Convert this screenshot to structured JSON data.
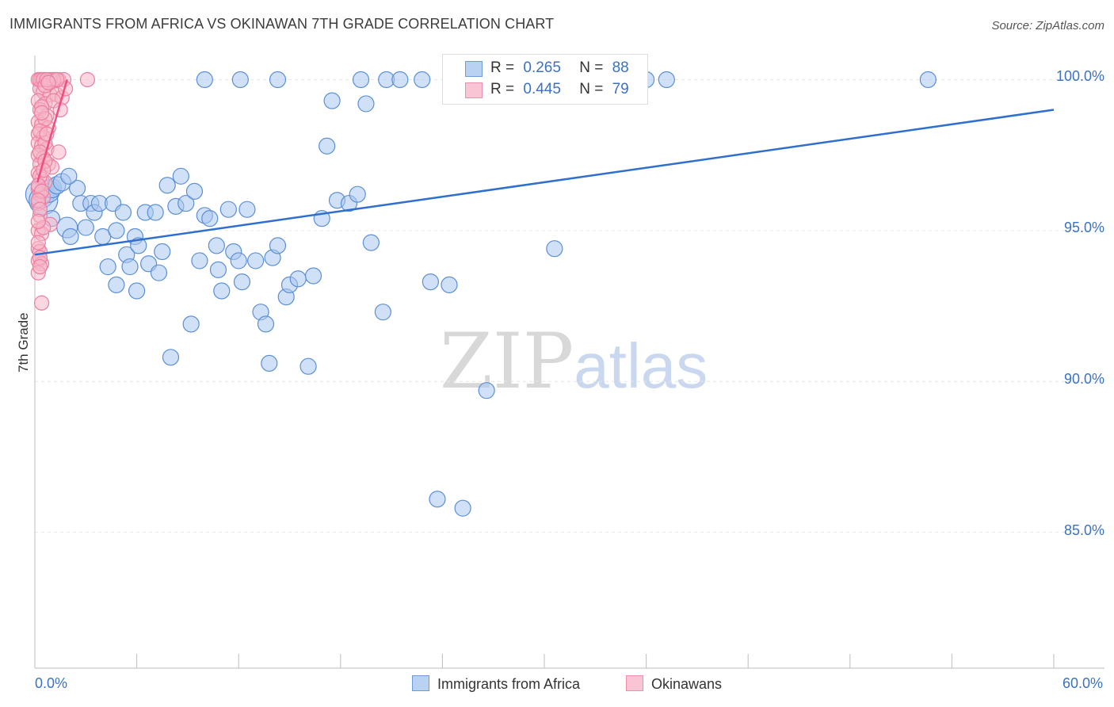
{
  "header": {
    "title": "IMMIGRANTS FROM AFRICA VS OKINAWAN 7TH GRADE CORRELATION CHART",
    "source": "Source: ZipAtlas.com"
  },
  "legend": {
    "rows": [
      {
        "r_label": "R =",
        "r_value": "0.265",
        "n_label": "N =",
        "n_value": "88"
      },
      {
        "r_label": "R =",
        "r_value": "0.445",
        "n_label": "N =",
        "n_value": "79"
      }
    ],
    "series_names": [
      "Immigrants from Africa",
      "Okinawans"
    ]
  },
  "watermark": {
    "zip": "ZIP",
    "atlas": "atlas"
  },
  "colors": {
    "blue_fill": "#a9c7ee",
    "blue_stroke": "#5b8fd6",
    "blue_line": "#2f6fcf",
    "pink_fill": "#f6b6c8",
    "pink_stroke": "#ee7da0",
    "pink_line": "#ee4f80",
    "grid": "#e6e6e6",
    "tick_text": "#3a72c4"
  },
  "chart_data": {
    "type": "scatter",
    "title": "IMMIGRANTS FROM AFRICA VS OKINAWAN 7TH GRADE CORRELATION CHART",
    "xlabel": "",
    "ylabel": "7th Grade",
    "x_tick_labels": [
      "0.0%",
      "60.0%"
    ],
    "y_tick_labels": [
      "100.0%",
      "95.0%",
      "90.0%",
      "85.0%"
    ],
    "y_ticks": [
      100,
      95,
      90,
      85
    ],
    "xlim": [
      0,
      60
    ],
    "ylim": [
      80.5,
      100.8
    ],
    "grid": true,
    "legend_position": "top-center",
    "series": [
      {
        "name": "Immigrants from Africa",
        "color": "blue",
        "r": 0.265,
        "n": 88,
        "trend": {
          "x": [
            0,
            60
          ],
          "y": [
            94.2,
            99.0
          ]
        },
        "points": [
          {
            "x": 0.3,
            "y": 96.2,
            "s": 18
          },
          {
            "x": 0.5,
            "y": 96.0,
            "s": 18
          },
          {
            "x": 0.8,
            "y": 96.3,
            "s": 14
          },
          {
            "x": 1.0,
            "y": 96.4,
            "s": 12
          },
          {
            "x": 1.3,
            "y": 96.5,
            "s": 11
          },
          {
            "x": 1.6,
            "y": 96.6,
            "s": 11
          },
          {
            "x": 1.9,
            "y": 95.1,
            "s": 13
          },
          {
            "x": 2.1,
            "y": 94.8,
            "s": 10
          },
          {
            "x": 2.5,
            "y": 96.4,
            "s": 10
          },
          {
            "x": 2.7,
            "y": 95.9,
            "s": 10
          },
          {
            "x": 3.0,
            "y": 95.1,
            "s": 10
          },
          {
            "x": 3.3,
            "y": 95.9,
            "s": 10
          },
          {
            "x": 3.5,
            "y": 95.6,
            "s": 10
          },
          {
            "x": 3.8,
            "y": 95.9,
            "s": 10
          },
          {
            "x": 4.0,
            "y": 94.8,
            "s": 10
          },
          {
            "x": 4.3,
            "y": 93.8,
            "s": 10
          },
          {
            "x": 4.6,
            "y": 95.9,
            "s": 10
          },
          {
            "x": 4.8,
            "y": 93.2,
            "s": 10
          },
          {
            "x": 5.2,
            "y": 95.6,
            "s": 10
          },
          {
            "x": 5.4,
            "y": 94.2,
            "s": 10
          },
          {
            "x": 5.6,
            "y": 93.8,
            "s": 10
          },
          {
            "x": 5.9,
            "y": 94.8,
            "s": 10
          },
          {
            "x": 6.1,
            "y": 94.5,
            "s": 10
          },
          {
            "x": 6.5,
            "y": 95.6,
            "s": 10
          },
          {
            "x": 6.7,
            "y": 93.9,
            "s": 10
          },
          {
            "x": 7.1,
            "y": 95.6,
            "s": 10
          },
          {
            "x": 7.3,
            "y": 93.6,
            "s": 10
          },
          {
            "x": 7.5,
            "y": 94.3,
            "s": 10
          },
          {
            "x": 7.8,
            "y": 96.5,
            "s": 10
          },
          {
            "x": 8.0,
            "y": 90.8,
            "s": 10
          },
          {
            "x": 8.3,
            "y": 95.8,
            "s": 10
          },
          {
            "x": 8.6,
            "y": 96.8,
            "s": 10
          },
          {
            "x": 8.9,
            "y": 95.9,
            "s": 10
          },
          {
            "x": 9.2,
            "y": 91.9,
            "s": 10
          },
          {
            "x": 9.4,
            "y": 96.3,
            "s": 10
          },
          {
            "x": 9.7,
            "y": 94.0,
            "s": 10
          },
          {
            "x": 10.0,
            "y": 95.5,
            "s": 10
          },
          {
            "x": 10.3,
            "y": 95.4,
            "s": 10
          },
          {
            "x": 10.7,
            "y": 94.5,
            "s": 10
          },
          {
            "x": 10.8,
            "y": 93.7,
            "s": 10
          },
          {
            "x": 11.0,
            "y": 93.0,
            "s": 10
          },
          {
            "x": 11.4,
            "y": 95.7,
            "s": 10
          },
          {
            "x": 11.7,
            "y": 94.3,
            "s": 10
          },
          {
            "x": 12.0,
            "y": 94.0,
            "s": 10
          },
          {
            "x": 12.2,
            "y": 93.3,
            "s": 10
          },
          {
            "x": 12.5,
            "y": 95.7,
            "s": 10
          },
          {
            "x": 13.0,
            "y": 94.0,
            "s": 10
          },
          {
            "x": 13.3,
            "y": 92.3,
            "s": 10
          },
          {
            "x": 13.6,
            "y": 91.9,
            "s": 10
          },
          {
            "x": 13.8,
            "y": 90.6,
            "s": 10
          },
          {
            "x": 14.0,
            "y": 94.1,
            "s": 10
          },
          {
            "x": 14.3,
            "y": 94.5,
            "s": 10
          },
          {
            "x": 14.8,
            "y": 92.8,
            "s": 10
          },
          {
            "x": 15.0,
            "y": 93.2,
            "s": 10
          },
          {
            "x": 15.5,
            "y": 93.4,
            "s": 10
          },
          {
            "x": 16.1,
            "y": 90.5,
            "s": 10
          },
          {
            "x": 16.4,
            "y": 93.5,
            "s": 10
          },
          {
            "x": 16.9,
            "y": 95.4,
            "s": 10
          },
          {
            "x": 17.2,
            "y": 97.8,
            "s": 10
          },
          {
            "x": 17.5,
            "y": 99.3,
            "s": 10
          },
          {
            "x": 17.8,
            "y": 96.0,
            "s": 10
          },
          {
            "x": 18.5,
            "y": 95.9,
            "s": 10
          },
          {
            "x": 19.0,
            "y": 96.2,
            "s": 10
          },
          {
            "x": 19.2,
            "y": 100.0,
            "s": 10
          },
          {
            "x": 19.5,
            "y": 99.2,
            "s": 10
          },
          {
            "x": 19.8,
            "y": 94.6,
            "s": 10
          },
          {
            "x": 20.5,
            "y": 92.3,
            "s": 10
          },
          {
            "x": 20.7,
            "y": 100.0,
            "s": 10
          },
          {
            "x": 22.8,
            "y": 100.0,
            "s": 10
          },
          {
            "x": 23.3,
            "y": 93.3,
            "s": 10
          },
          {
            "x": 23.7,
            "y": 86.1,
            "s": 10
          },
          {
            "x": 24.4,
            "y": 93.2,
            "s": 10
          },
          {
            "x": 25.2,
            "y": 85.8,
            "s": 10
          },
          {
            "x": 26.6,
            "y": 89.7,
            "s": 10
          },
          {
            "x": 30.6,
            "y": 94.4,
            "s": 10
          },
          {
            "x": 34.0,
            "y": 100.0,
            "s": 10
          },
          {
            "x": 37.2,
            "y": 100.0,
            "s": 10
          },
          {
            "x": 52.6,
            "y": 100.0,
            "s": 10
          },
          {
            "x": 14.3,
            "y": 100.0,
            "s": 10
          },
          {
            "x": 26.0,
            "y": 100.0,
            "s": 10
          },
          {
            "x": 36.0,
            "y": 100.0,
            "s": 10
          },
          {
            "x": 21.5,
            "y": 100.0,
            "s": 10
          },
          {
            "x": 10.0,
            "y": 100.0,
            "s": 10
          },
          {
            "x": 12.1,
            "y": 100.0,
            "s": 10
          },
          {
            "x": 1.0,
            "y": 95.4,
            "s": 10
          },
          {
            "x": 2.0,
            "y": 96.8,
            "s": 10
          },
          {
            "x": 4.8,
            "y": 95.0,
            "s": 10
          },
          {
            "x": 6.0,
            "y": 93.0,
            "s": 10
          }
        ]
      },
      {
        "name": "Okinawans",
        "color": "pink",
        "r": 0.445,
        "n": 79,
        "trend": {
          "x": [
            0.15,
            1.9
          ],
          "y": [
            96.6,
            100.0
          ]
        },
        "points": [
          {
            "x": 0.2,
            "y": 100.0
          },
          {
            "x": 0.4,
            "y": 100.0
          },
          {
            "x": 0.6,
            "y": 100.0
          },
          {
            "x": 0.8,
            "y": 100.0
          },
          {
            "x": 1.0,
            "y": 100.0
          },
          {
            "x": 1.2,
            "y": 100.0
          },
          {
            "x": 1.4,
            "y": 100.0
          },
          {
            "x": 1.7,
            "y": 100.0
          },
          {
            "x": 3.1,
            "y": 100.0
          },
          {
            "x": 0.3,
            "y": 99.7
          },
          {
            "x": 0.5,
            "y": 99.6
          },
          {
            "x": 0.9,
            "y": 99.5
          },
          {
            "x": 1.3,
            "y": 99.5
          },
          {
            "x": 1.6,
            "y": 99.4
          },
          {
            "x": 0.2,
            "y": 99.3
          },
          {
            "x": 0.6,
            "y": 99.2
          },
          {
            "x": 1.1,
            "y": 99.3
          },
          {
            "x": 0.3,
            "y": 99.0
          },
          {
            "x": 0.7,
            "y": 98.8
          },
          {
            "x": 1.5,
            "y": 99.0
          },
          {
            "x": 0.2,
            "y": 98.6
          },
          {
            "x": 0.4,
            "y": 98.5
          },
          {
            "x": 0.8,
            "y": 98.4
          },
          {
            "x": 0.2,
            "y": 98.2
          },
          {
            "x": 0.5,
            "y": 98.1
          },
          {
            "x": 0.2,
            "y": 97.9
          },
          {
            "x": 0.4,
            "y": 97.8
          },
          {
            "x": 0.7,
            "y": 97.7
          },
          {
            "x": 0.2,
            "y": 97.5
          },
          {
            "x": 0.5,
            "y": 97.4
          },
          {
            "x": 1.4,
            "y": 97.6
          },
          {
            "x": 0.3,
            "y": 97.2
          },
          {
            "x": 0.8,
            "y": 97.2
          },
          {
            "x": 1.0,
            "y": 97.1
          },
          {
            "x": 0.2,
            "y": 96.9
          },
          {
            "x": 0.4,
            "y": 96.7
          },
          {
            "x": 0.6,
            "y": 96.6
          },
          {
            "x": 0.2,
            "y": 96.4
          },
          {
            "x": 0.3,
            "y": 96.2
          },
          {
            "x": 0.5,
            "y": 96.1
          },
          {
            "x": 0.2,
            "y": 95.9
          },
          {
            "x": 0.3,
            "y": 95.5
          },
          {
            "x": 0.9,
            "y": 95.2
          },
          {
            "x": 0.2,
            "y": 95.0
          },
          {
            "x": 0.4,
            "y": 94.9
          },
          {
            "x": 0.2,
            "y": 94.4
          },
          {
            "x": 0.3,
            "y": 94.3
          },
          {
            "x": 0.2,
            "y": 94.0
          },
          {
            "x": 0.4,
            "y": 93.9
          },
          {
            "x": 0.2,
            "y": 93.6
          },
          {
            "x": 0.4,
            "y": 92.6
          },
          {
            "x": 0.3,
            "y": 100.0
          },
          {
            "x": 0.5,
            "y": 100.0
          },
          {
            "x": 0.9,
            "y": 100.0
          },
          {
            "x": 1.1,
            "y": 100.0
          },
          {
            "x": 0.6,
            "y": 99.8
          },
          {
            "x": 1.8,
            "y": 99.7
          },
          {
            "x": 0.4,
            "y": 99.1
          },
          {
            "x": 0.6,
            "y": 98.7
          },
          {
            "x": 0.3,
            "y": 98.3
          },
          {
            "x": 0.6,
            "y": 97.9
          },
          {
            "x": 0.3,
            "y": 97.6
          },
          {
            "x": 0.6,
            "y": 97.3
          },
          {
            "x": 0.3,
            "y": 96.8
          },
          {
            "x": 0.2,
            "y": 96.5
          },
          {
            "x": 0.4,
            "y": 96.3
          },
          {
            "x": 0.2,
            "y": 96.0
          },
          {
            "x": 0.3,
            "y": 95.7
          },
          {
            "x": 0.5,
            "y": 95.1
          },
          {
            "x": 0.2,
            "y": 94.6
          },
          {
            "x": 0.3,
            "y": 94.1
          },
          {
            "x": 0.7,
            "y": 100.0
          },
          {
            "x": 1.3,
            "y": 100.0
          },
          {
            "x": 0.8,
            "y": 99.9
          },
          {
            "x": 0.4,
            "y": 98.9
          },
          {
            "x": 0.5,
            "y": 97.0
          },
          {
            "x": 0.2,
            "y": 95.3
          },
          {
            "x": 0.3,
            "y": 93.8
          },
          {
            "x": 0.7,
            "y": 98.2
          }
        ]
      }
    ]
  }
}
